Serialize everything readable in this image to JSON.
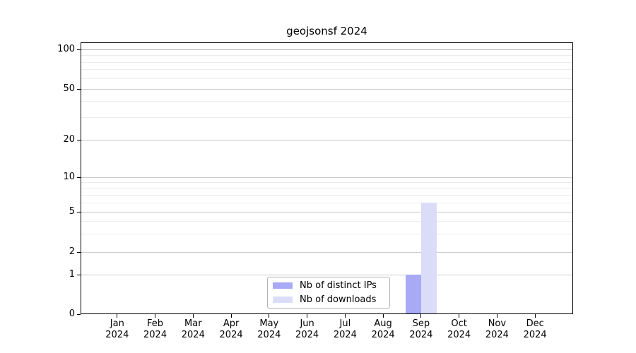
{
  "chart_data": {
    "type": "bar",
    "title": "geojsonsf 2024",
    "categories": [
      {
        "month": "Jan",
        "year": "2024"
      },
      {
        "month": "Feb",
        "year": "2024"
      },
      {
        "month": "Mar",
        "year": "2024"
      },
      {
        "month": "Apr",
        "year": "2024"
      },
      {
        "month": "May",
        "year": "2024"
      },
      {
        "month": "Jun",
        "year": "2024"
      },
      {
        "month": "Jul",
        "year": "2024"
      },
      {
        "month": "Aug",
        "year": "2024"
      },
      {
        "month": "Sep",
        "year": "2024"
      },
      {
        "month": "Oct",
        "year": "2024"
      },
      {
        "month": "Nov",
        "year": "2024"
      },
      {
        "month": "Dec",
        "year": "2024"
      }
    ],
    "series": [
      {
        "name": "Nb of distinct IPs",
        "color": "#a8aaf5",
        "values": [
          0,
          0,
          0,
          0,
          0,
          0,
          0,
          0,
          1,
          0,
          0,
          0
        ]
      },
      {
        "name": "Nb of downloads",
        "color": "#dbddf8",
        "values": [
          0,
          0,
          0,
          0,
          0,
          0,
          0,
          0,
          6,
          0,
          0,
          0
        ]
      }
    ],
    "y_axis": {
      "scale": "symlog",
      "ticks": [
        0,
        1,
        2,
        5,
        10,
        20,
        50,
        100
      ],
      "minor_gridlines": [
        3,
        4,
        6,
        7,
        8,
        9,
        30,
        40,
        60,
        70,
        80,
        90
      ],
      "ylim": [
        0,
        110
      ]
    },
    "xlabel": "",
    "ylabel": "",
    "grid": true,
    "legend_position": "lower-center-inside"
  },
  "colors": {
    "background": "#ffffff",
    "axis": "#000000",
    "grid_major": "#cbcbcb",
    "grid_minor": "#ececec",
    "legend_border": "#b3b3b3"
  }
}
